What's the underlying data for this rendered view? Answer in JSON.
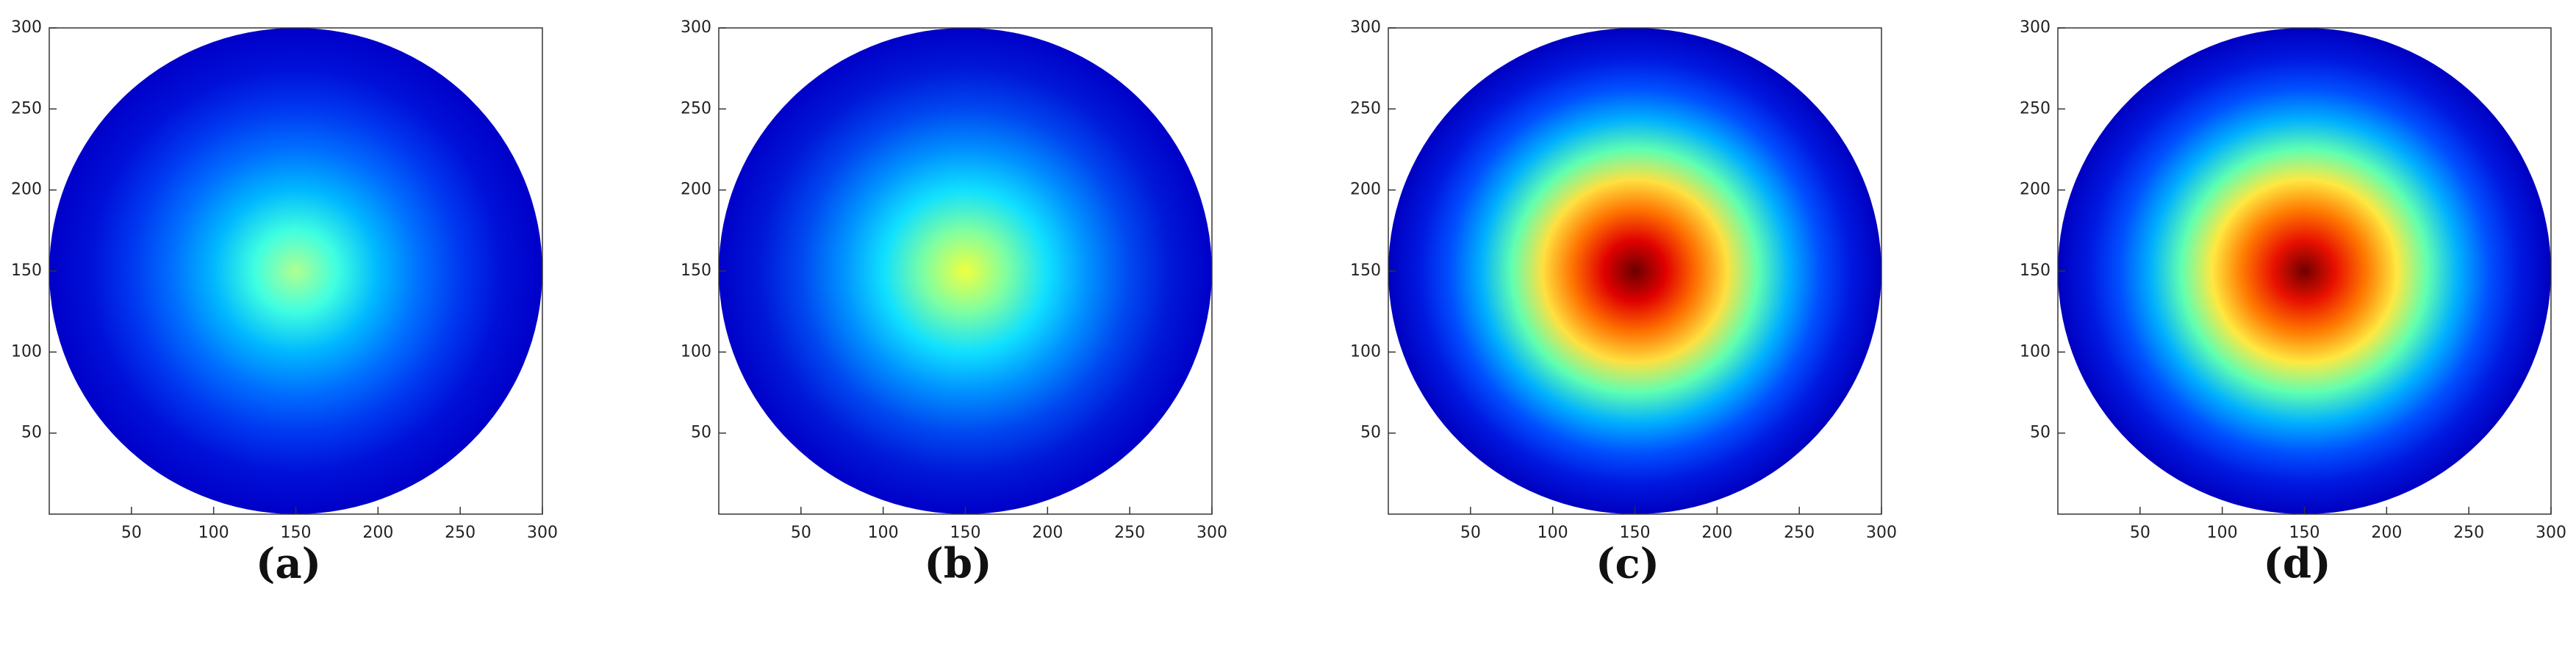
{
  "chart_data": [
    {
      "type": "heatmap",
      "caption": "(a)",
      "xlim": [
        0,
        300
      ],
      "ylim": [
        0,
        300
      ],
      "xticks": [
        50,
        100,
        150,
        200,
        250,
        300
      ],
      "yticks": [
        50,
        100,
        150,
        200,
        250,
        300
      ],
      "colors": [
        "#b0ff90",
        "#40ffe0",
        "#00b8ff",
        "#0070ff",
        "#0038f0",
        "#0010d8",
        "#0000c8"
      ]
    },
    {
      "type": "heatmap",
      "caption": "(b)",
      "xlim": [
        0,
        300
      ],
      "ylim": [
        0,
        300
      ],
      "xticks": [
        50,
        100,
        150,
        200,
        250,
        300
      ],
      "yticks": [
        50,
        100,
        150,
        200,
        250,
        300
      ],
      "colors": [
        "#f0ff40",
        "#80ffa0",
        "#10e0ff",
        "#0090ff",
        "#0048f0",
        "#0018d8",
        "#0000c8"
      ]
    },
    {
      "type": "heatmap",
      "caption": "(c)",
      "xlim": [
        0,
        300
      ],
      "ylim": [
        0,
        300
      ],
      "xticks": [
        50,
        100,
        150,
        200,
        250,
        300
      ],
      "yticks": [
        50,
        100,
        150,
        200,
        250,
        300
      ],
      "colors": [
        "#6a0000",
        "#e00000",
        "#ff7000",
        "#ffe040",
        "#60ffb0",
        "#00b0ff",
        "#0050ff",
        "#0018e0",
        "#0000c0"
      ]
    },
    {
      "type": "heatmap",
      "caption": "(d)",
      "xlim": [
        0,
        300
      ],
      "ylim": [
        0,
        300
      ],
      "xticks": [
        50,
        100,
        150,
        200,
        250,
        300
      ],
      "yticks": [
        50,
        100,
        150,
        200,
        250,
        300
      ],
      "colors": [
        "#700000",
        "#e81000",
        "#ff7800",
        "#ffe840",
        "#60ffb0",
        "#00b0ff",
        "#0050ff",
        "#0018e0",
        "#0000c0"
      ]
    }
  ]
}
